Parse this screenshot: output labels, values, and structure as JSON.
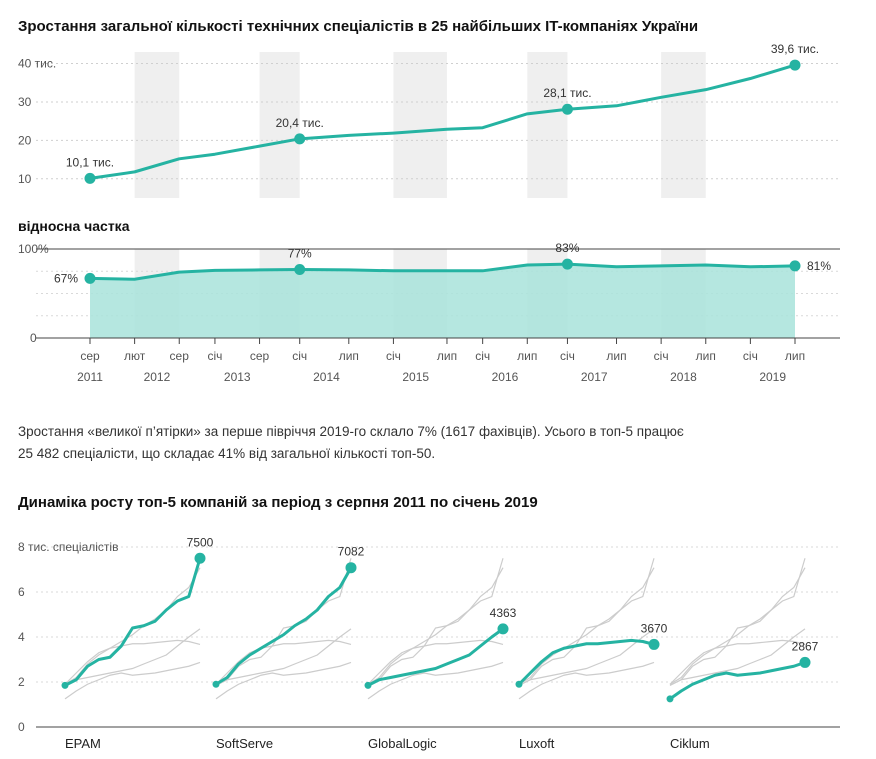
{
  "chart_data": [
    {
      "type": "line",
      "title": "Зростання загальної кількості технічних спеціалістів в 25 найбільших IT-компаніях України",
      "ylim": [
        5,
        43
      ],
      "y_ticks": [
        "10",
        "20",
        "30",
        "40 тис."
      ],
      "y_tick_values": [
        10,
        20,
        30,
        40
      ],
      "x_range": [
        2011.6,
        2019.5
      ],
      "x": [
        2011.6,
        2012.1,
        2012.6,
        2013.0,
        2013.5,
        2013.95,
        2014.5,
        2015.0,
        2015.6,
        2016.0,
        2016.5,
        2016.95,
        2017.5,
        2018.0,
        2018.5,
        2019.0,
        2019.5
      ],
      "values": [
        10.1,
        11.8,
        15.2,
        16.4,
        18.5,
        20.4,
        21.3,
        21.9,
        22.9,
        23.3,
        26.9,
        28.1,
        29.0,
        31.2,
        33.2,
        36.1,
        39.6
      ],
      "labels": [
        {
          "x": 2011.6,
          "y": 10.1,
          "text": "10,1 тис."
        },
        {
          "x": 2013.95,
          "y": 20.4,
          "text": "20,4 тис."
        },
        {
          "x": 2016.95,
          "y": 28.1,
          "text": "28,1 тис."
        },
        {
          "x": 2019.5,
          "y": 39.6,
          "text": "39,6 тис."
        }
      ],
      "shaded_bands": [
        [
          2012.1,
          2012.6
        ],
        [
          2013.5,
          2013.95
        ],
        [
          2015.0,
          2015.6
        ],
        [
          2016.5,
          2016.95
        ],
        [
          2018.0,
          2018.5
        ]
      ],
      "color": "#25b3a2"
    },
    {
      "type": "area",
      "title": "відносна частка",
      "ylim": [
        0,
        100
      ],
      "y_ticks": [
        "0",
        "100%"
      ],
      "y_tick_values": [
        0,
        100
      ],
      "x_range": [
        2011.6,
        2019.5
      ],
      "x": [
        2011.6,
        2012.1,
        2012.6,
        2013.0,
        2013.5,
        2013.95,
        2014.5,
        2015.0,
        2015.6,
        2016.0,
        2016.5,
        2016.95,
        2017.5,
        2018.0,
        2018.5,
        2019.0,
        2019.5
      ],
      "values": [
        67,
        66,
        74,
        76,
        76.5,
        77,
        76.5,
        75.5,
        75.5,
        75.5,
        82,
        83,
        80,
        81,
        82,
        80,
        81
      ],
      "labels": [
        {
          "x": 2011.6,
          "y": 67,
          "text": "67%"
        },
        {
          "x": 2013.95,
          "y": 77,
          "text": "77%"
        },
        {
          "x": 2016.95,
          "y": 83,
          "text": "83%"
        },
        {
          "x": 2019.5,
          "y": 81,
          "text": "81%"
        }
      ],
      "x_tick_positions": [
        2011.6,
        2012.1,
        2012.6,
        2013.0,
        2013.5,
        2013.95,
        2014.5,
        2015.0,
        2015.6,
        2016.0,
        2016.5,
        2016.95,
        2017.5,
        2018.0,
        2018.5,
        2019.0,
        2019.5
      ],
      "x_ticks": [
        "сер",
        "лют",
        "сер",
        "січ",
        "сер",
        "січ",
        "лип",
        "січ",
        "лип",
        "січ",
        "лип",
        "січ",
        "лип",
        "січ",
        "лип",
        "січ",
        "лип"
      ],
      "year_positions": [
        2011.6,
        2012.35,
        2013.25,
        2014.25,
        2015.25,
        2016.25,
        2017.25,
        2018.25,
        2019.25
      ],
      "years": [
        "2011",
        "2012",
        "2013",
        "2014",
        "2015",
        "2016",
        "2017",
        "2018",
        "2019"
      ],
      "color": "#25b3a2",
      "fill": "#a8e3da"
    },
    {
      "type": "line",
      "title": "Динаміка росту топ-5 компаній за період з серпня 2011 по січень 2019",
      "ylim": [
        0,
        8
      ],
      "y_ticks": [
        "0",
        "2",
        "4",
        "6",
        "8 тис. спеціалістів"
      ],
      "y_tick_values": [
        0,
        2,
        4,
        6,
        8
      ],
      "x": [
        0,
        0.083,
        0.167,
        0.25,
        0.333,
        0.417,
        0.5,
        0.583,
        0.667,
        0.75,
        0.833,
        0.917,
        1
      ],
      "series": [
        {
          "name": "EPAM",
          "end_label": "7500",
          "values": [
            1.85,
            2.1,
            2.7,
            3.0,
            3.1,
            3.6,
            4.4,
            4.5,
            4.7,
            5.2,
            5.6,
            5.8,
            7.5
          ]
        },
        {
          "name": "SoftServe",
          "end_label": "7082",
          "values": [
            1.9,
            2.2,
            2.8,
            3.2,
            3.5,
            3.8,
            4.1,
            4.5,
            4.8,
            5.2,
            5.8,
            6.2,
            7.08
          ]
        },
        {
          "name": "GlobalLogic",
          "end_label": "4363",
          "values": [
            1.85,
            2.1,
            2.2,
            2.3,
            2.4,
            2.5,
            2.6,
            2.8,
            3.0,
            3.2,
            3.6,
            4.0,
            4.36
          ]
        },
        {
          "name": "Luxoft",
          "end_label": "3670",
          "values": [
            1.9,
            2.4,
            2.9,
            3.3,
            3.5,
            3.6,
            3.7,
            3.7,
            3.75,
            3.8,
            3.85,
            3.8,
            3.67
          ]
        },
        {
          "name": "Ciklum",
          "end_label": "2867",
          "values": [
            1.25,
            1.6,
            1.9,
            2.1,
            2.3,
            2.4,
            2.3,
            2.35,
            2.4,
            2.5,
            2.6,
            2.7,
            2.87
          ]
        }
      ],
      "color": "#25b3a2",
      "background_line_color": "#cccccc"
    }
  ],
  "paragraph": {
    "line1": "Зростання «великої п’ятірки» за перше півріччя 2019-го склало 7% (1617 фахівців). Усього в топ-5 працює",
    "line2": "25 482 спеціалісти, що складає 41% від загальної кількості топ-50."
  }
}
